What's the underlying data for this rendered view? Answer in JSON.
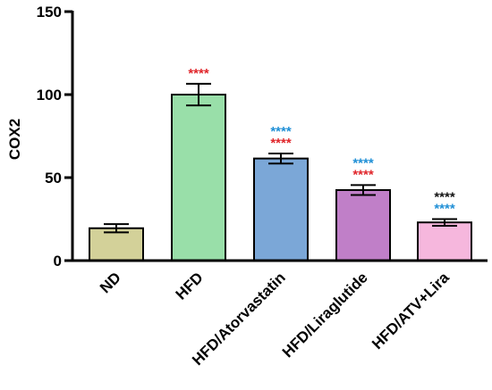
{
  "chart_data": {
    "type": "bar",
    "title": "",
    "xlabel": "",
    "ylabel": "COX2",
    "ylim": [
      0,
      150
    ],
    "yticks": [
      0,
      50,
      100,
      150
    ],
    "grid": false,
    "categories": [
      "ND",
      "HFD",
      "HFD/Atorvastatin",
      "HFD/Liraglutide",
      "HFD/ATV+Lira"
    ],
    "values": [
      19.5,
      100,
      61.5,
      42.5,
      23
    ],
    "errors": [
      2.5,
      6.5,
      3,
      3,
      2
    ],
    "bar_colors": [
      "#d3d199",
      "#99dfa9",
      "#7ba7d7",
      "#c07fc8",
      "#f6b7dd"
    ],
    "significance": [
      [],
      [
        {
          "text": "****",
          "color": "#e0262b"
        }
      ],
      [
        {
          "text": "****",
          "color": "#1f8fd6"
        },
        {
          "text": "****",
          "color": "#e0262b"
        }
      ],
      [
        {
          "text": "****",
          "color": "#1f8fd6"
        },
        {
          "text": "****",
          "color": "#e0262b"
        }
      ],
      [
        {
          "text": "****",
          "color": "#111111"
        },
        {
          "text": "****",
          "color": "#1f8fd6"
        }
      ]
    ]
  }
}
